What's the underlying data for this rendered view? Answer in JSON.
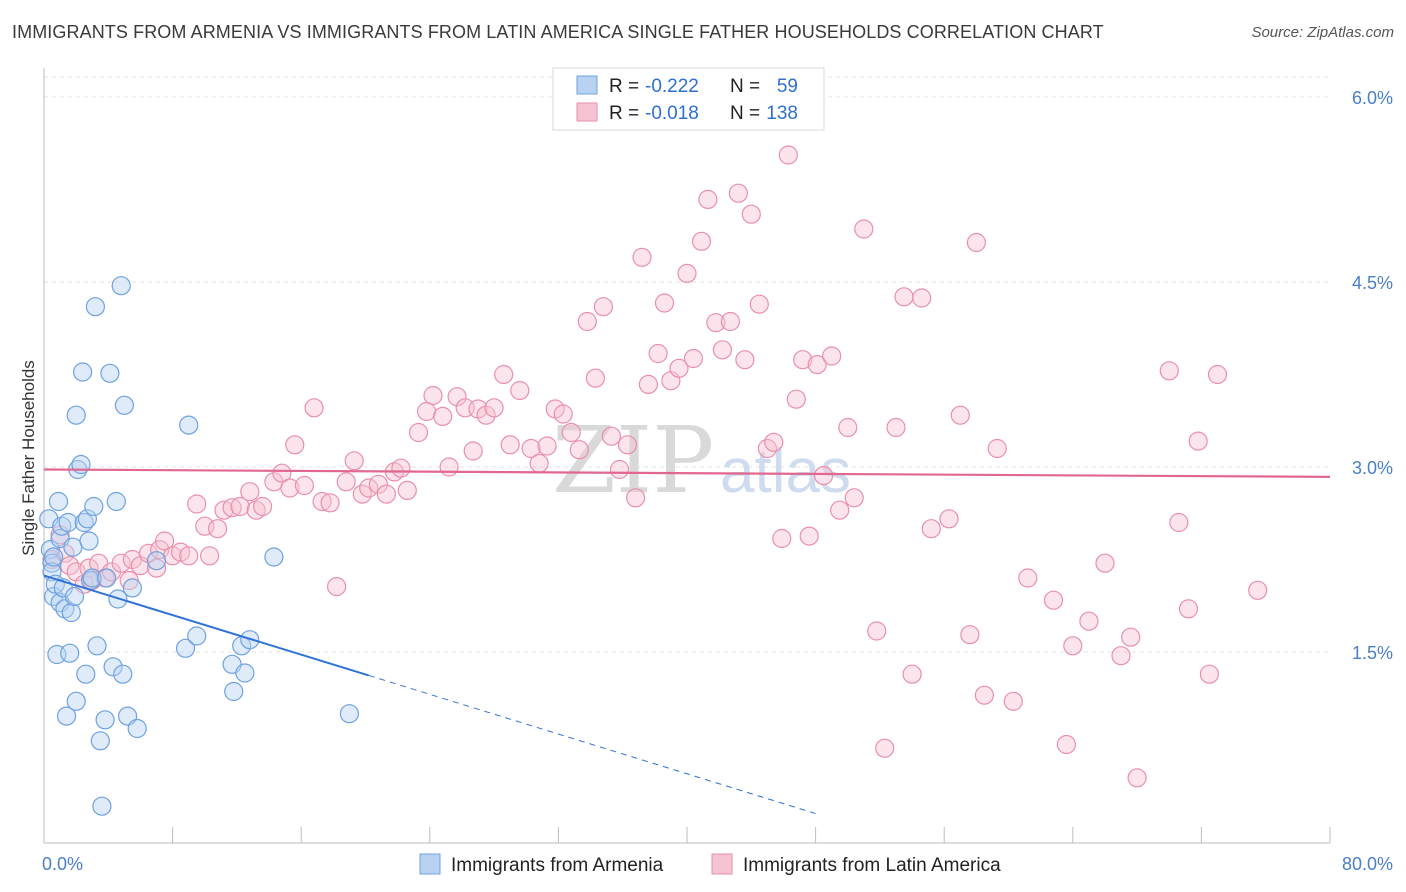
{
  "title": "IMMIGRANTS FROM ARMENIA VS IMMIGRANTS FROM LATIN AMERICA SINGLE FATHER HOUSEHOLDS CORRELATION CHART",
  "source": "Source: ZipAtlas.com",
  "watermark": {
    "zip": "ZIP",
    "atlas": "atlas"
  },
  "chart_data": {
    "type": "scatter",
    "ylabel": "Single Father Households",
    "xlabel": "",
    "xlim": [
      0,
      80
    ],
    "ylim": [
      0,
      6.2
    ],
    "x_tick_labels": [
      {
        "value": 0,
        "label": "0.0%"
      },
      {
        "value": 80,
        "label": "80.0%"
      }
    ],
    "y_tick_labels": [
      {
        "value": 1.5,
        "label": "1.5%"
      },
      {
        "value": 3.0,
        "label": "3.0%"
      },
      {
        "value": 4.5,
        "label": "4.5%"
      },
      {
        "value": 6.0,
        "label": "6.0%"
      }
    ],
    "grid": true,
    "legend_position": "top-center",
    "series": [
      {
        "name": "Immigrants from Armenia",
        "color": "#6ea1e0",
        "fill": "#b9d2f2",
        "line_color": "#2f72d6",
        "R": "-0.222",
        "N": "59",
        "trend": {
          "x0": 0,
          "y0": 2.12,
          "x1": 20.2,
          "y1": 1.31,
          "dash_to_x": 48,
          "dash_to_y": 0.19
        },
        "points": [
          [
            0.3,
            2.58
          ],
          [
            0.4,
            2.33
          ],
          [
            0.5,
            2.22
          ],
          [
            0.5,
            2.15
          ],
          [
            0.6,
            2.27
          ],
          [
            0.6,
            1.95
          ],
          [
            0.7,
            2.05
          ],
          [
            0.8,
            1.48
          ],
          [
            0.9,
            2.72
          ],
          [
            1.0,
            2.42
          ],
          [
            1.0,
            1.9
          ],
          [
            1.1,
            2.52
          ],
          [
            1.2,
            2.02
          ],
          [
            1.3,
            1.85
          ],
          [
            1.4,
            0.98
          ],
          [
            1.5,
            2.55
          ],
          [
            1.6,
            1.49
          ],
          [
            1.7,
            1.82
          ],
          [
            1.8,
            2.35
          ],
          [
            1.9,
            1.95
          ],
          [
            2.0,
            1.1
          ],
          [
            2.0,
            3.42
          ],
          [
            2.1,
            2.98
          ],
          [
            2.3,
            3.02
          ],
          [
            2.4,
            3.77
          ],
          [
            2.5,
            2.55
          ],
          [
            2.6,
            1.32
          ],
          [
            2.7,
            2.58
          ],
          [
            2.8,
            2.4
          ],
          [
            2.9,
            2.08
          ],
          [
            3.0,
            2.1
          ],
          [
            3.1,
            2.68
          ],
          [
            3.2,
            4.3
          ],
          [
            3.3,
            1.55
          ],
          [
            3.5,
            0.78
          ],
          [
            3.6,
            0.25
          ],
          [
            3.8,
            0.95
          ],
          [
            3.9,
            2.1
          ],
          [
            4.1,
            3.76
          ],
          [
            4.3,
            1.38
          ],
          [
            4.5,
            2.72
          ],
          [
            4.6,
            1.93
          ],
          [
            4.8,
            4.47
          ],
          [
            4.9,
            1.32
          ],
          [
            5.0,
            3.5
          ],
          [
            5.2,
            0.98
          ],
          [
            5.5,
            2.02
          ],
          [
            5.8,
            0.88
          ],
          [
            7.0,
            2.24
          ],
          [
            8.8,
            1.53
          ],
          [
            9.0,
            3.34
          ],
          [
            9.5,
            1.63
          ],
          [
            11.7,
            1.4
          ],
          [
            11.8,
            1.18
          ],
          [
            12.3,
            1.55
          ],
          [
            12.5,
            1.33
          ],
          [
            12.8,
            1.6
          ],
          [
            14.3,
            2.27
          ],
          [
            19.0,
            1.0
          ]
        ]
      },
      {
        "name": "Immigrants from Latin America",
        "color": "#ea8fab",
        "fill": "#f6c3d3",
        "line_color": "#e2678f",
        "R": "-0.018",
        "N": "138",
        "trend": {
          "x0": 0,
          "y0": 2.98,
          "x1": 80,
          "y1": 2.92
        },
        "points": [
          [
            0.5,
            2.25
          ],
          [
            1.0,
            2.45
          ],
          [
            1.3,
            2.3
          ],
          [
            1.6,
            2.2
          ],
          [
            2.0,
            2.15
          ],
          [
            2.5,
            2.05
          ],
          [
            2.8,
            2.18
          ],
          [
            3.0,
            2.08
          ],
          [
            3.4,
            2.22
          ],
          [
            3.8,
            2.1
          ],
          [
            4.2,
            2.15
          ],
          [
            4.8,
            2.22
          ],
          [
            5.3,
            2.08
          ],
          [
            5.5,
            2.25
          ],
          [
            6.0,
            2.2
          ],
          [
            6.5,
            2.3
          ],
          [
            7.0,
            2.18
          ],
          [
            7.2,
            2.33
          ],
          [
            7.5,
            2.4
          ],
          [
            8.0,
            2.28
          ],
          [
            8.5,
            2.31
          ],
          [
            9.0,
            2.28
          ],
          [
            9.5,
            2.7
          ],
          [
            10.0,
            2.52
          ],
          [
            10.3,
            2.28
          ],
          [
            10.8,
            2.5
          ],
          [
            11.2,
            2.65
          ],
          [
            11.7,
            2.67
          ],
          [
            12.2,
            2.68
          ],
          [
            12.8,
            2.8
          ],
          [
            13.2,
            2.65
          ],
          [
            13.6,
            2.68
          ],
          [
            14.3,
            2.88
          ],
          [
            14.8,
            2.95
          ],
          [
            15.3,
            2.83
          ],
          [
            15.6,
            3.18
          ],
          [
            16.2,
            2.85
          ],
          [
            16.8,
            3.48
          ],
          [
            17.3,
            2.72
          ],
          [
            17.8,
            2.71
          ],
          [
            18.2,
            2.03
          ],
          [
            18.8,
            2.88
          ],
          [
            19.3,
            3.05
          ],
          [
            19.8,
            2.78
          ],
          [
            20.2,
            2.83
          ],
          [
            20.8,
            2.86
          ],
          [
            21.3,
            2.78
          ],
          [
            21.8,
            2.96
          ],
          [
            22.2,
            2.99
          ],
          [
            22.6,
            2.81
          ],
          [
            23.3,
            3.28
          ],
          [
            23.8,
            3.45
          ],
          [
            24.2,
            3.58
          ],
          [
            24.8,
            3.41
          ],
          [
            25.2,
            3.0
          ],
          [
            25.7,
            3.57
          ],
          [
            26.2,
            3.48
          ],
          [
            26.7,
            3.13
          ],
          [
            27.0,
            3.47
          ],
          [
            27.5,
            3.42
          ],
          [
            28.0,
            3.48
          ],
          [
            28.6,
            3.75
          ],
          [
            29.0,
            3.18
          ],
          [
            29.6,
            3.62
          ],
          [
            30.3,
            3.15
          ],
          [
            30.8,
            3.03
          ],
          [
            31.3,
            3.17
          ],
          [
            31.8,
            3.47
          ],
          [
            32.3,
            3.43
          ],
          [
            32.8,
            3.28
          ],
          [
            33.3,
            3.14
          ],
          [
            33.8,
            4.18
          ],
          [
            34.3,
            3.72
          ],
          [
            34.8,
            4.3
          ],
          [
            35.3,
            3.25
          ],
          [
            35.8,
            2.98
          ],
          [
            36.3,
            3.18
          ],
          [
            36.8,
            2.75
          ],
          [
            37.2,
            4.7
          ],
          [
            37.6,
            3.67
          ],
          [
            38.2,
            3.92
          ],
          [
            38.6,
            4.33
          ],
          [
            39.0,
            3.7
          ],
          [
            39.5,
            3.8
          ],
          [
            40.0,
            4.57
          ],
          [
            40.4,
            3.88
          ],
          [
            40.9,
            4.83
          ],
          [
            41.3,
            5.17
          ],
          [
            41.8,
            4.17
          ],
          [
            42.2,
            3.95
          ],
          [
            42.7,
            4.18
          ],
          [
            43.2,
            5.22
          ],
          [
            43.6,
            3.87
          ],
          [
            44.0,
            5.05
          ],
          [
            44.5,
            4.32
          ],
          [
            45.0,
            3.15
          ],
          [
            45.4,
            3.2
          ],
          [
            45.9,
            2.42
          ],
          [
            46.3,
            5.53
          ],
          [
            46.8,
            3.55
          ],
          [
            47.2,
            3.87
          ],
          [
            47.6,
            2.44
          ],
          [
            48.1,
            3.83
          ],
          [
            48.5,
            2.93
          ],
          [
            49.0,
            3.9
          ],
          [
            49.5,
            2.65
          ],
          [
            50.0,
            3.32
          ],
          [
            50.4,
            2.75
          ],
          [
            51.0,
            4.93
          ],
          [
            51.8,
            1.67
          ],
          [
            52.3,
            0.72
          ],
          [
            53.0,
            3.32
          ],
          [
            53.5,
            4.38
          ],
          [
            54.0,
            1.32
          ],
          [
            54.6,
            4.37
          ],
          [
            55.2,
            2.5
          ],
          [
            56.3,
            2.58
          ],
          [
            57.0,
            3.42
          ],
          [
            57.6,
            1.64
          ],
          [
            58.0,
            4.82
          ],
          [
            58.5,
            1.15
          ],
          [
            59.3,
            3.15
          ],
          [
            60.3,
            1.1
          ],
          [
            61.2,
            2.1
          ],
          [
            62.8,
            1.92
          ],
          [
            63.6,
            0.75
          ],
          [
            64.0,
            1.55
          ],
          [
            65.0,
            1.75
          ],
          [
            66.0,
            2.22
          ],
          [
            67.0,
            1.47
          ],
          [
            67.6,
            1.62
          ],
          [
            68.0,
            0.48
          ],
          [
            70.0,
            3.78
          ],
          [
            70.6,
            2.55
          ],
          [
            71.2,
            1.85
          ],
          [
            71.8,
            3.21
          ],
          [
            72.5,
            1.32
          ],
          [
            73.0,
            3.75
          ],
          [
            75.5,
            2.0
          ]
        ]
      }
    ]
  },
  "legend": {
    "r_label": "R =",
    "n_label": "N =",
    "rows": [
      {
        "r": "-0.222",
        "n": "59"
      },
      {
        "r": "-0.018",
        "n": "138"
      }
    ]
  },
  "bottom_legend": [
    {
      "label": "Immigrants from Armenia"
    },
    {
      "label": "Immigrants from Latin America"
    }
  ]
}
